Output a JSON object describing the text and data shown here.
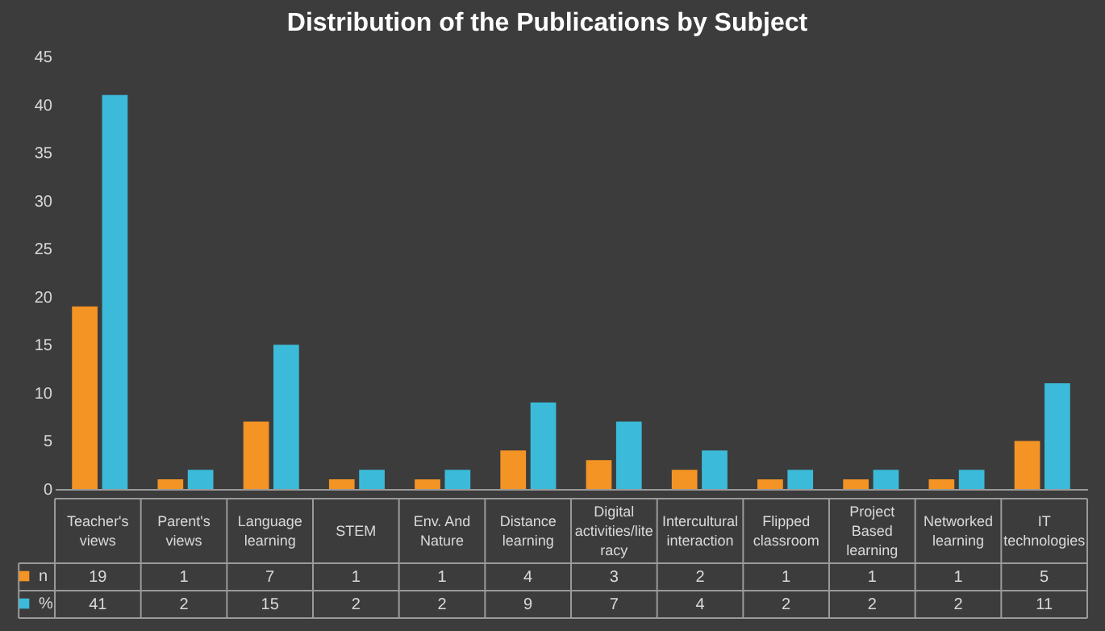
{
  "chart_data": {
    "type": "bar",
    "title": "Distribution of the Publications by Subject",
    "categories": [
      "Teacher's views",
      "Parent's views",
      "Language learning",
      "STEM",
      "Env. And Nature",
      "Distance learning",
      "Digital activities/literacy",
      "Intercultural interaction",
      "Flipped classroom",
      "Project Based learning",
      "Networked learning",
      "IT technologies"
    ],
    "series": [
      {
        "name": "n",
        "color": "#f39425",
        "values": [
          19,
          1,
          7,
          1,
          1,
          4,
          3,
          2,
          1,
          1,
          1,
          5
        ]
      },
      {
        "name": "%",
        "color": "#3bbbd9",
        "values": [
          41,
          2,
          15,
          2,
          2,
          9,
          7,
          4,
          2,
          2,
          2,
          11
        ]
      }
    ],
    "ylim": [
      0,
      45
    ],
    "yticks": [
      0,
      5,
      10,
      15,
      20,
      25,
      30,
      35,
      40,
      45
    ],
    "data_labels": true,
    "legend": "bottom left"
  }
}
